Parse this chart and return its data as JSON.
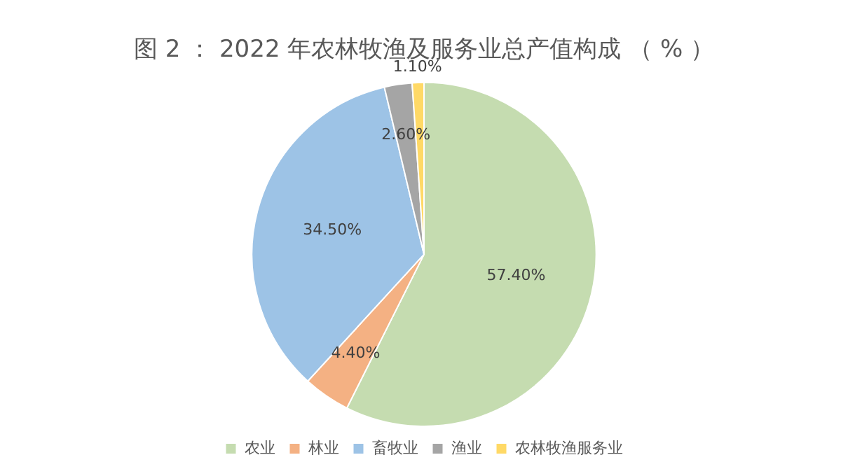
{
  "chart_data": {
    "type": "pie",
    "title": "图 2 ： 2022 年农林牧渔及服务业总产值构成 （ % ）",
    "categories": [
      "农业",
      "林业",
      "畜牧业",
      "渔业",
      "农林牧渔服务业"
    ],
    "values": [
      57.4,
      4.4,
      34.5,
      2.6,
      1.1
    ],
    "colors": [
      "#c5dcb0",
      "#f4b183",
      "#9dc3e6",
      "#a5a5a5",
      "#ffd966"
    ],
    "value_labels": [
      "57.40%",
      "4.40%",
      "34.50%",
      "2.60%",
      "1.10%"
    ],
    "legend": "bottom"
  }
}
